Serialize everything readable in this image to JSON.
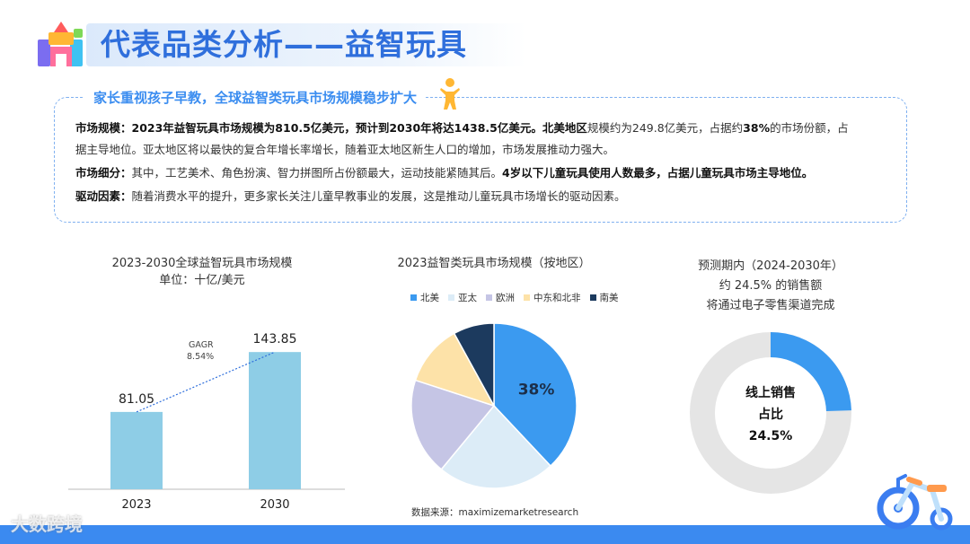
{
  "page": {
    "title": "代表品类分析——益智玩具",
    "summary_heading": "家长重视孩子早教，全球益智类玩具市场规模稳步扩大",
    "paragraphs": {
      "p1_label": "市场规模：",
      "p1_bold": "2023年益智玩具市场规模为810.5亿美元，预计到2030年将达1438.5亿美元。北美地区",
      "p1_text": "规模约为249.8亿美元，占据约",
      "p1_bold2": "38%",
      "p1_text2": "的市场份额，占",
      "p1_line2": "据主导地位。亚太地区将以最快的复合年增长率增长，随着亚太地区新生人口的增加，市场发展推动力强大。",
      "p2_label": "市场细分：",
      "p2_text": "其中，工艺美术、角色扮演、智力拼图所占份额最大，运动技能紧随其后。",
      "p2_bold": "4岁以下儿童玩具使用人数最多，占据儿童玩具市场主导地位。",
      "p3_label": "驱动因素：",
      "p3_text": "随着消费水平的提升，更多家长关注儿童早教事业的发展，这是推动儿童玩具市场增长的驱动因素。"
    },
    "source": "数据来源：maximizemarketresearch",
    "watermark": "大数跨境"
  },
  "colors": {
    "accent": "#2f6fdc",
    "bar": "#8ecde6",
    "donut_fill": "#3b9af0",
    "donut_track": "#e5e5e5",
    "footer": "#3b8af0"
  },
  "chart_data": [
    {
      "type": "bar",
      "title": "2023-2030全球益智玩具市场规模",
      "subtitle": "单位：十亿/美元",
      "categories": [
        "2023",
        "2030"
      ],
      "values": [
        81.05,
        143.85
      ],
      "value_labels": [
        "81.05",
        "143.85"
      ],
      "annotation": {
        "line1": "GAGR",
        "line2": "8.54%"
      },
      "ylim": [
        0,
        160
      ]
    },
    {
      "type": "pie",
      "title": "2023益智类玩具市场规模（按地区）",
      "labels": [
        "北美",
        "亚太",
        "欧洲",
        "中东和北非",
        "南美"
      ],
      "values": [
        38,
        23,
        19,
        12,
        8
      ],
      "colors": [
        "#3b9af0",
        "#dcecf7",
        "#c5c5e5",
        "#fde2a8",
        "#1c3a5e"
      ],
      "slice_label": "38%",
      "legend": "top"
    },
    {
      "type": "pie",
      "title_lines": [
        "预测期内（2024-2030年）",
        "约 24.5% 的销售额",
        "将通过电子零售渠道完成"
      ],
      "labels": [
        "线上销售占比"
      ],
      "values": [
        24.5
      ],
      "center_lines": [
        "线上销售",
        "占比",
        "24.5%"
      ]
    }
  ]
}
